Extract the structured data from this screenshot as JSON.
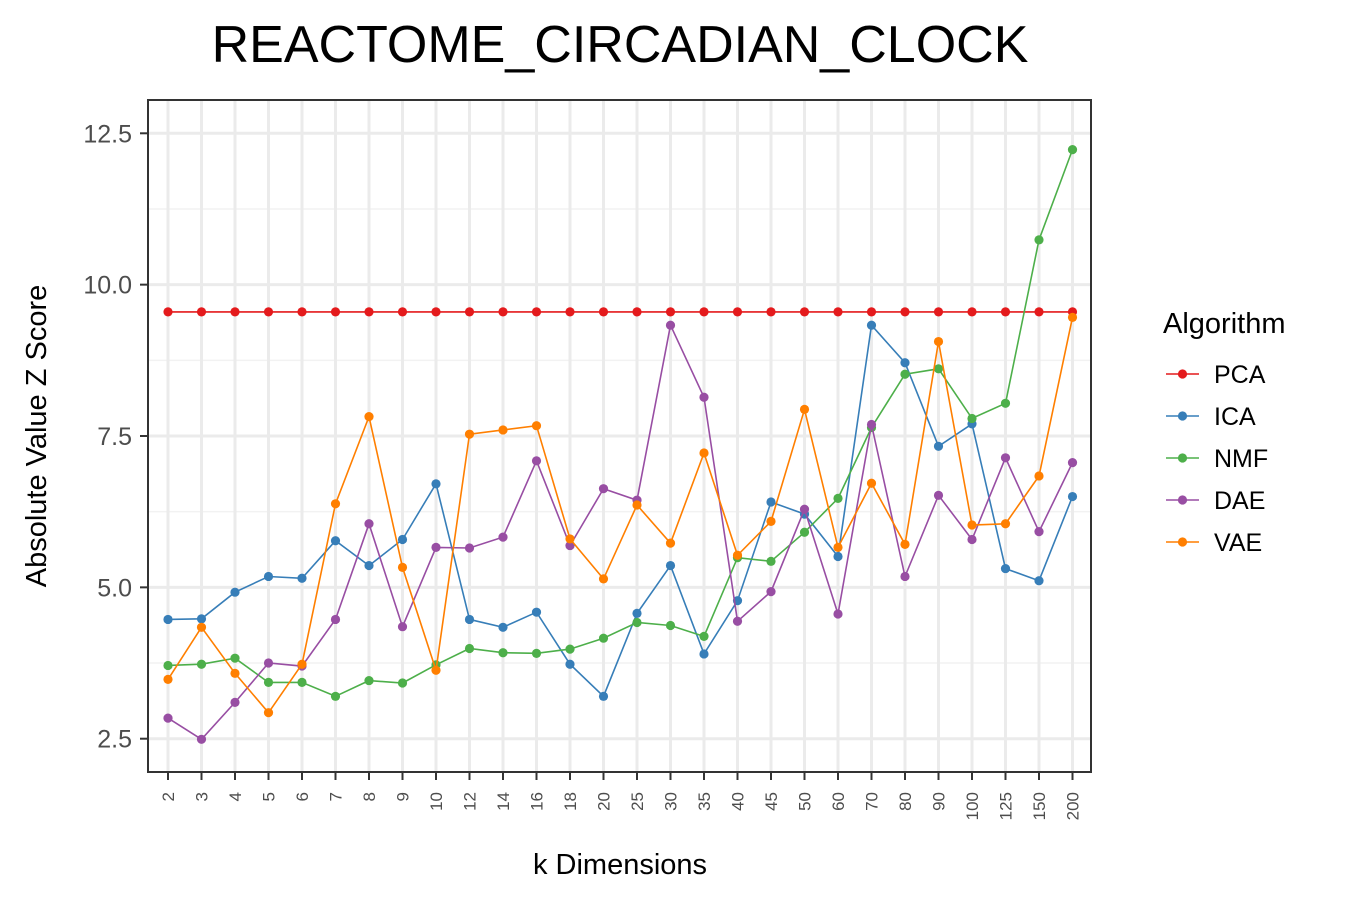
{
  "chart_data": {
    "type": "line",
    "title": "REACTOME_CIRCADIAN_CLOCK",
    "xlabel": "k Dimensions",
    "ylabel": "Absolute Value Z Score",
    "categories": [
      "2",
      "3",
      "4",
      "5",
      "6",
      "7",
      "8",
      "9",
      "10",
      "12",
      "14",
      "16",
      "18",
      "20",
      "25",
      "30",
      "35",
      "40",
      "45",
      "50",
      "60",
      "70",
      "80",
      "90",
      "100",
      "125",
      "150",
      "200"
    ],
    "ylim": [
      1.95,
      13.05
    ],
    "yticks": [
      "2.5",
      "5.0",
      "7.5",
      "10.0",
      "12.5"
    ],
    "ytick_values": [
      2.5,
      5.0,
      7.5,
      10.0,
      12.5
    ],
    "grid": true,
    "legend": {
      "title": "Algorithm",
      "placement": "right"
    },
    "series": [
      {
        "name": "PCA",
        "color": "#e41a1c",
        "values": [
          9.55,
          9.55,
          9.55,
          9.55,
          9.55,
          9.55,
          9.55,
          9.55,
          9.55,
          9.55,
          9.55,
          9.55,
          9.55,
          9.55,
          9.55,
          9.55,
          9.55,
          9.55,
          9.55,
          9.55,
          9.55,
          9.55,
          9.55,
          9.55,
          9.55,
          9.55,
          9.55,
          9.55
        ]
      },
      {
        "name": "ICA",
        "color": "#377eb8",
        "values": [
          4.47,
          4.48,
          4.92,
          5.18,
          5.15,
          5.77,
          5.36,
          5.79,
          6.71,
          4.47,
          4.34,
          4.59,
          3.73,
          3.2,
          4.57,
          5.36,
          3.9,
          4.78,
          6.41,
          6.21,
          5.51,
          9.33,
          8.71,
          7.33,
          7.7,
          5.31,
          5.11,
          6.5
        ]
      },
      {
        "name": "NMF",
        "color": "#4daf4a",
        "values": [
          3.71,
          3.73,
          3.83,
          3.43,
          3.43,
          3.2,
          3.46,
          3.42,
          3.72,
          3.99,
          3.92,
          3.91,
          3.98,
          4.16,
          4.42,
          4.37,
          4.19,
          5.49,
          5.43,
          5.91,
          6.47,
          7.64,
          8.52,
          8.61,
          7.79,
          8.04,
          10.74,
          12.23
        ]
      },
      {
        "name": "DAE",
        "color": "#984ea3",
        "values": [
          2.84,
          2.49,
          3.1,
          3.75,
          3.7,
          4.47,
          6.05,
          4.35,
          5.66,
          5.65,
          5.83,
          7.09,
          5.69,
          6.63,
          6.44,
          9.33,
          8.14,
          4.44,
          4.93,
          6.29,
          4.56,
          7.69,
          5.18,
          6.52,
          5.79,
          7.14,
          5.92,
          7.06
        ]
      },
      {
        "name": "VAE",
        "color": "#ff7f00",
        "values": [
          3.48,
          4.34,
          3.58,
          2.93,
          3.73,
          6.38,
          7.82,
          5.33,
          3.63,
          7.53,
          7.6,
          7.67,
          5.8,
          5.14,
          6.36,
          5.73,
          7.22,
          5.53,
          6.09,
          7.94,
          5.66,
          6.72,
          5.71,
          9.06,
          6.03,
          6.05,
          6.84,
          9.46
        ]
      }
    ]
  }
}
